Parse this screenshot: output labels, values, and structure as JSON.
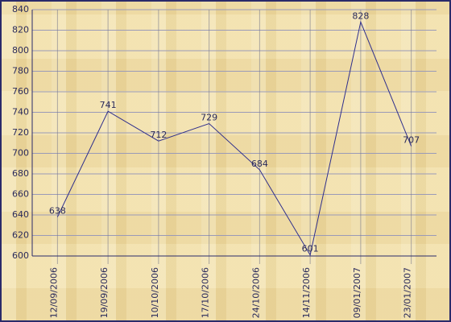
{
  "chart_data": {
    "type": "line",
    "categories": [
      "12/09/2006",
      "19/09/2006",
      "10/10/2006",
      "17/10/2006",
      "24/10/2006",
      "14/11/2006",
      "09/01/2007",
      "23/01/2007"
    ],
    "values": [
      638,
      741,
      712,
      729,
      684,
      601,
      828,
      707
    ],
    "color": "#2e2e8c",
    "ylim": [
      600,
      840
    ],
    "yticks": [
      600,
      620,
      640,
      660,
      680,
      700,
      720,
      740,
      760,
      780,
      800,
      820,
      840
    ],
    "grid": true
  }
}
